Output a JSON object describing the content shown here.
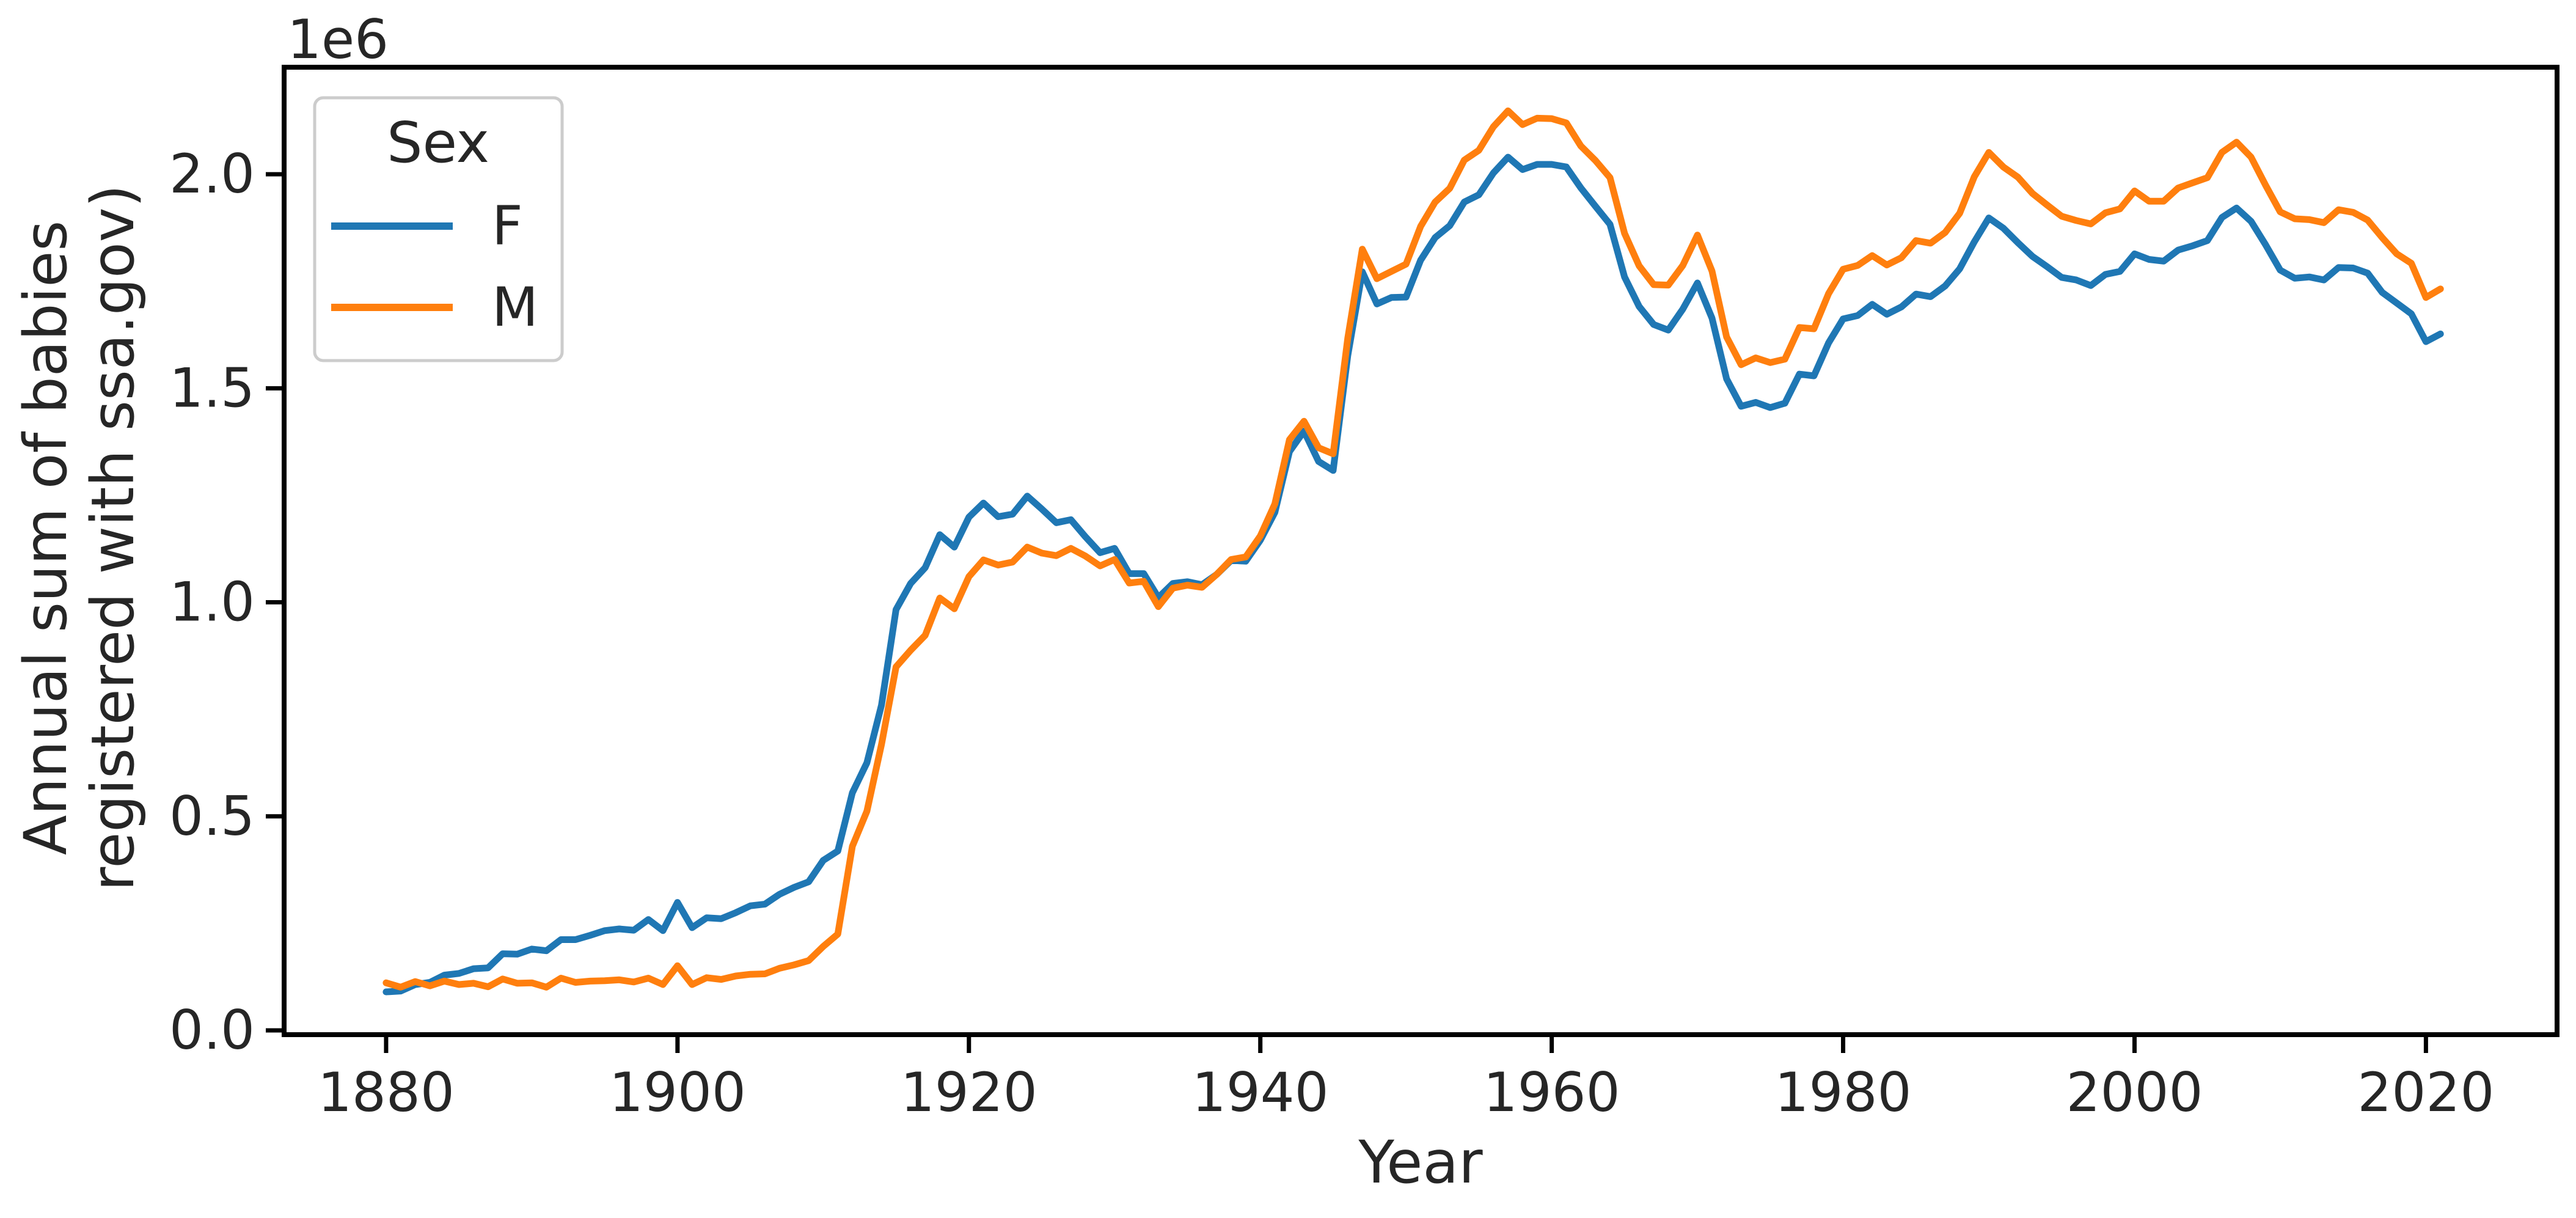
{
  "chart_data": {
    "type": "line",
    "xlabel": "Year",
    "ylabel_lines": [
      "Annual sum of babies",
      "registered with ssa.gov)"
    ],
    "y_offset_label": "1e6",
    "xlim": [
      1873,
      2029
    ],
    "ylim": [
      -0.01,
      2.25
    ],
    "xticks": [
      1880,
      1900,
      1920,
      1940,
      1960,
      1980,
      2000,
      2020
    ],
    "xtick_labels": [
      "1880",
      "1900",
      "1920",
      "1940",
      "1960",
      "1980",
      "2000",
      "2020"
    ],
    "yticks": [
      0.0,
      0.5,
      1.0,
      1.5,
      2.0
    ],
    "ytick_labels": [
      "0.0",
      "0.5",
      "1.0",
      "1.5",
      "2.0"
    ],
    "grid": false,
    "legend": {
      "title": "Sex",
      "placement": "top-left",
      "entries": [
        {
          "label": "F",
          "color": "#1f77b4"
        },
        {
          "label": "M",
          "color": "#ff7f0e"
        }
      ]
    },
    "x_start": 1880,
    "series": [
      {
        "name": "F",
        "color": "#1f77b4",
        "values": [
          0.09,
          0.092,
          0.107,
          0.112,
          0.129,
          0.133,
          0.144,
          0.146,
          0.179,
          0.178,
          0.19,
          0.186,
          0.212,
          0.212,
          0.222,
          0.233,
          0.237,
          0.234,
          0.259,
          0.233,
          0.299,
          0.24,
          0.263,
          0.261,
          0.275,
          0.291,
          0.295,
          0.318,
          0.334,
          0.347,
          0.397,
          0.419,
          0.555,
          0.625,
          0.76,
          0.983,
          1.044,
          1.081,
          1.158,
          1.129,
          1.199,
          1.232,
          1.2,
          1.206,
          1.248,
          1.218,
          1.186,
          1.193,
          1.153,
          1.116,
          1.126,
          1.067,
          1.067,
          1.011,
          1.044,
          1.048,
          1.041,
          1.065,
          1.098,
          1.096,
          1.145,
          1.21,
          1.352,
          1.4,
          1.329,
          1.308,
          1.576,
          1.772,
          1.697,
          1.712,
          1.713,
          1.799,
          1.852,
          1.88,
          1.935,
          1.952,
          2.003,
          2.04,
          2.011,
          2.023,
          2.023,
          2.017,
          1.968,
          1.925,
          1.883,
          1.76,
          1.691,
          1.649,
          1.636,
          1.685,
          1.746,
          1.664,
          1.522,
          1.458,
          1.467,
          1.455,
          1.465,
          1.533,
          1.529,
          1.606,
          1.662,
          1.67,
          1.696,
          1.673,
          1.69,
          1.72,
          1.714,
          1.739,
          1.779,
          1.842,
          1.898,
          1.874,
          1.84,
          1.808,
          1.784,
          1.759,
          1.753,
          1.74,
          1.766,
          1.773,
          1.814,
          1.801,
          1.797,
          1.823,
          1.833,
          1.845,
          1.899,
          1.921,
          1.89,
          1.835,
          1.776,
          1.757,
          1.76,
          1.753,
          1.782,
          1.781,
          1.769,
          1.724,
          1.699,
          1.674,
          1.609,
          1.627
        ]
      },
      {
        "name": "M",
        "color": "#ff7f0e",
        "values": [
          0.111,
          0.101,
          0.114,
          0.104,
          0.115,
          0.107,
          0.11,
          0.102,
          0.12,
          0.11,
          0.111,
          0.101,
          0.122,
          0.112,
          0.115,
          0.116,
          0.118,
          0.113,
          0.122,
          0.107,
          0.151,
          0.107,
          0.123,
          0.119,
          0.127,
          0.131,
          0.132,
          0.145,
          0.153,
          0.163,
          0.196,
          0.225,
          0.43,
          0.512,
          0.668,
          0.849,
          0.888,
          0.923,
          1.01,
          0.985,
          1.06,
          1.099,
          1.087,
          1.094,
          1.129,
          1.115,
          1.109,
          1.126,
          1.108,
          1.085,
          1.1,
          1.045,
          1.049,
          0.99,
          1.033,
          1.04,
          1.035,
          1.065,
          1.1,
          1.106,
          1.155,
          1.23,
          1.38,
          1.423,
          1.361,
          1.347,
          1.617,
          1.825,
          1.756,
          1.773,
          1.79,
          1.878,
          1.935,
          1.967,
          2.033,
          2.056,
          2.111,
          2.148,
          2.116,
          2.131,
          2.13,
          2.12,
          2.066,
          2.032,
          1.992,
          1.862,
          1.786,
          1.742,
          1.741,
          1.787,
          1.858,
          1.774,
          1.62,
          1.555,
          1.571,
          1.56,
          1.568,
          1.642,
          1.639,
          1.721,
          1.778,
          1.787,
          1.81,
          1.788,
          1.805,
          1.845,
          1.839,
          1.864,
          1.909,
          1.994,
          2.051,
          2.017,
          1.993,
          1.955,
          1.928,
          1.902,
          1.892,
          1.884,
          1.91,
          1.919,
          1.961,
          1.937,
          1.937,
          1.968,
          1.98,
          1.992,
          2.051,
          2.075,
          2.04,
          1.974,
          1.912,
          1.896,
          1.894,
          1.887,
          1.917,
          1.911,
          1.893,
          1.852,
          1.814,
          1.792,
          1.712,
          1.732
        ]
      }
    ]
  }
}
